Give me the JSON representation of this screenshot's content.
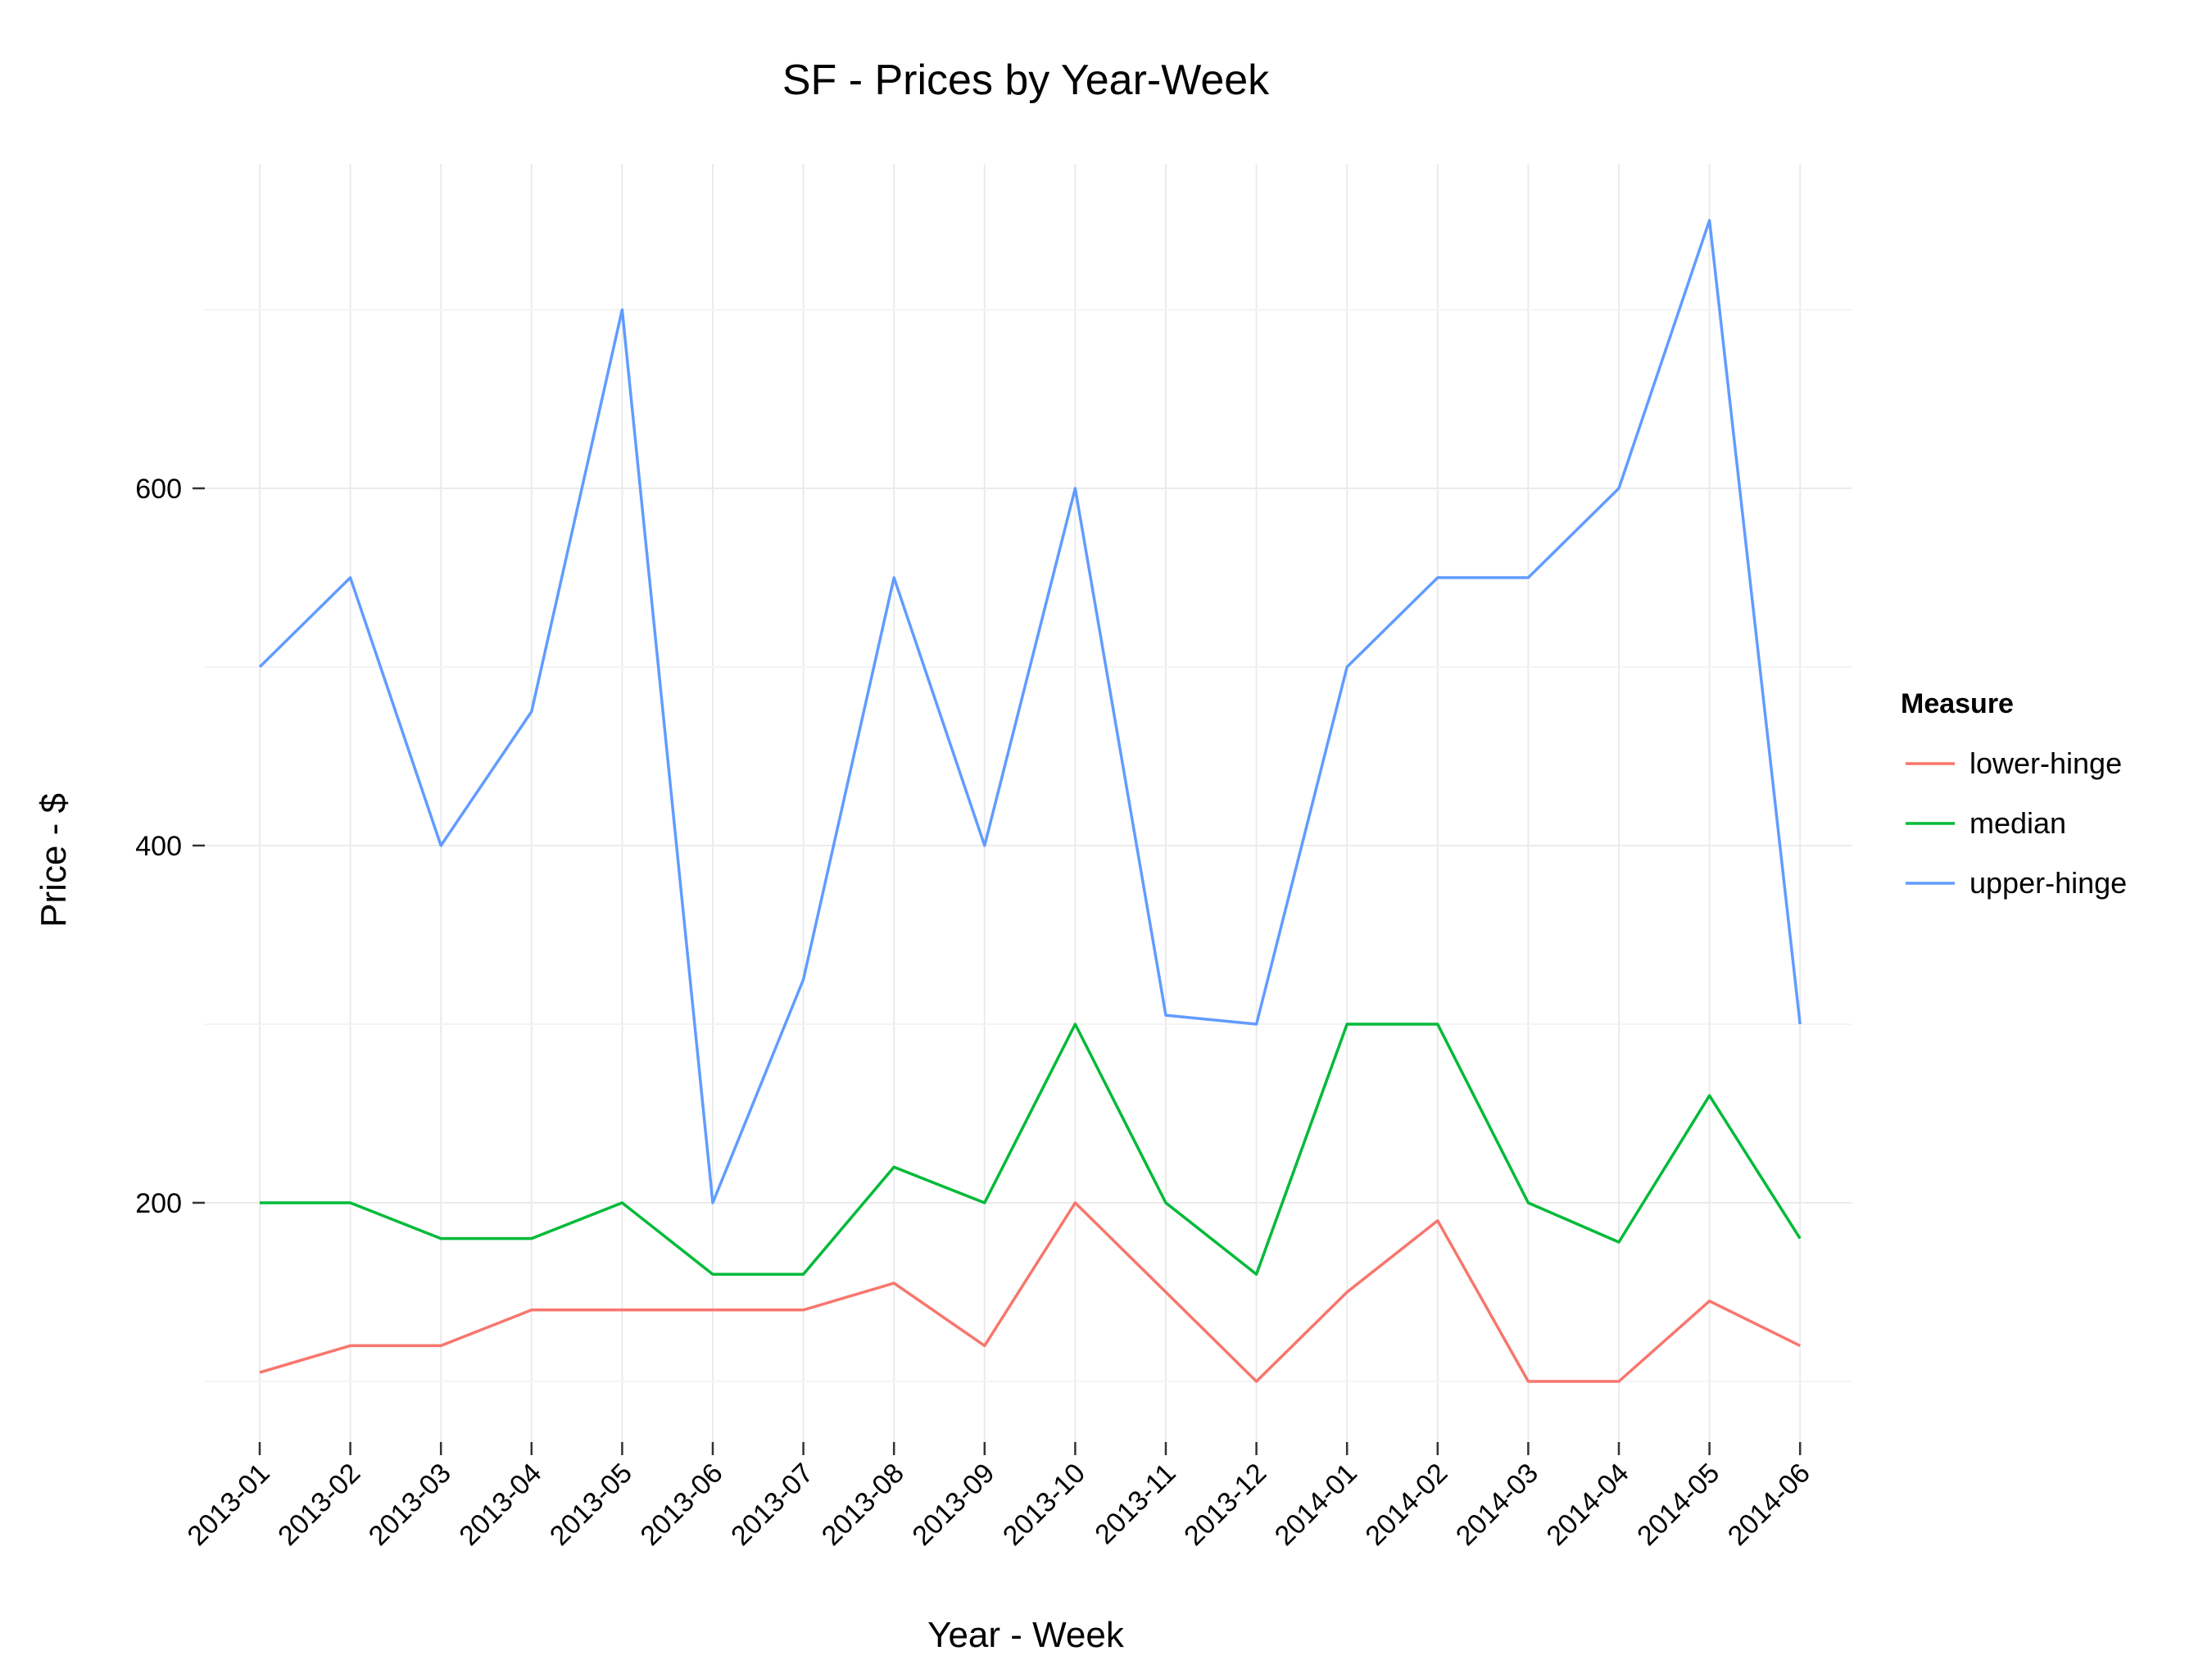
{
  "chart_data": {
    "type": "line",
    "title": "SF - Prices by Year-Week",
    "xlabel": "Year - Week",
    "ylabel": "Price - $",
    "categories": [
      "2013-01",
      "2013-02",
      "2013-03",
      "2013-04",
      "2013-05",
      "2013-06",
      "2013-07",
      "2013-08",
      "2013-09",
      "2013-10",
      "2013-11",
      "2013-12",
      "2014-01",
      "2014-02",
      "2014-03",
      "2014-04",
      "2014-05",
      "2014-06"
    ],
    "yticks": [
      200,
      400,
      600
    ],
    "ylim": [
      70,
      820
    ],
    "grid": true,
    "legend": {
      "title": "Measure",
      "placement": "right"
    },
    "series": [
      {
        "name": "lower-hinge",
        "color": "#F8766D",
        "values": [
          105,
          120,
          120,
          140,
          140,
          140,
          140,
          155,
          120,
          200,
          150,
          100,
          150,
          190,
          100,
          100,
          145,
          120
        ]
      },
      {
        "name": "median",
        "color": "#00BA38",
        "values": [
          200,
          200,
          180,
          180,
          200,
          160,
          160,
          220,
          200,
          300,
          200,
          160,
          300,
          300,
          200,
          178,
          260,
          180
        ]
      },
      {
        "name": "upper-hinge",
        "color": "#619CFF",
        "values": [
          500,
          550,
          400,
          475,
          700,
          200,
          325,
          550,
          400,
          600,
          305,
          300,
          500,
          550,
          550,
          600,
          750,
          300
        ]
      }
    ]
  }
}
